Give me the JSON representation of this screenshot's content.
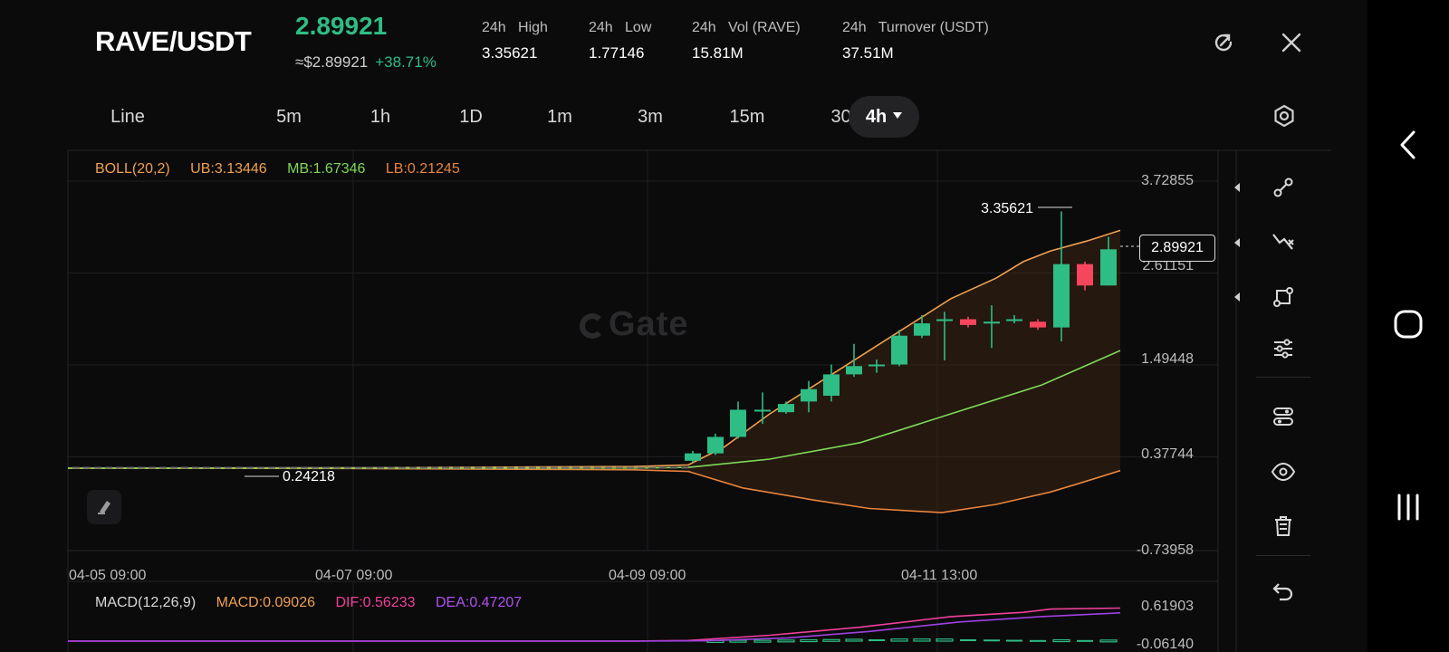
{
  "header": {
    "pair": "RAVE/USDT",
    "price": "2.89921",
    "approx_price": "≈$2.89921",
    "change": "+38.71%",
    "stats": [
      {
        "label": "24h   High",
        "value": "3.35621"
      },
      {
        "label": "24h   Low",
        "value": "1.77146"
      },
      {
        "label": "24h   Vol (RAVE)",
        "value": "15.81M"
      },
      {
        "label": "24h   Turnover (USDT)",
        "value": "37.51M"
      }
    ]
  },
  "tabs": [
    {
      "label": "Line"
    },
    {
      "label": "5m"
    },
    {
      "label": "1h"
    },
    {
      "label": "1D"
    },
    {
      "label": "1m"
    },
    {
      "label": "3m"
    },
    {
      "label": "15m"
    },
    {
      "label": "30m"
    },
    {
      "label": "4h",
      "active": true
    }
  ],
  "boll_legend": {
    "name": "BOLL(20,2)",
    "ub": "UB:3.13446",
    "mb": "MB:1.67346",
    "lb": "LB:0.21245"
  },
  "macd_legend": {
    "name": "MACD(12,26,9)",
    "macd": "MACD:0.09026",
    "dif": "DIF:0.56233",
    "dea": "DEA:0.47207"
  },
  "watermark": "Gate",
  "price_axis": [
    "3.72855",
    "2.61151",
    "1.49448",
    "0.37744",
    "-0.73958"
  ],
  "macd_axis": [
    "0.61903",
    "-0.06140"
  ],
  "time_axis": [
    "04-05 09:00",
    "04-07 09:00",
    "04-09 09:00",
    "04-11 13:00"
  ],
  "high_marker": "3.35621",
  "low_marker": "0.24218",
  "current_price_tag": "2.89921",
  "colors": {
    "up": "#2ebd85",
    "down": "#f6465d",
    "ub": "#f0a050",
    "mb": "#7ed957",
    "lb": "#e8843c",
    "dif": "#f0409a",
    "dea": "#a040e0"
  },
  "icons": {
    "refresh": "refresh-icon",
    "close": "close-icon",
    "settings": "hexagon-settings-icon",
    "tools": [
      "trendline-icon",
      "crossline-icon",
      "shape-icon",
      "sliders-icon",
      "indicator-icon",
      "eye-icon",
      "trash-icon",
      "undo-icon"
    ],
    "nav": [
      "back-icon",
      "home-icon",
      "recents-icon"
    ]
  }
}
